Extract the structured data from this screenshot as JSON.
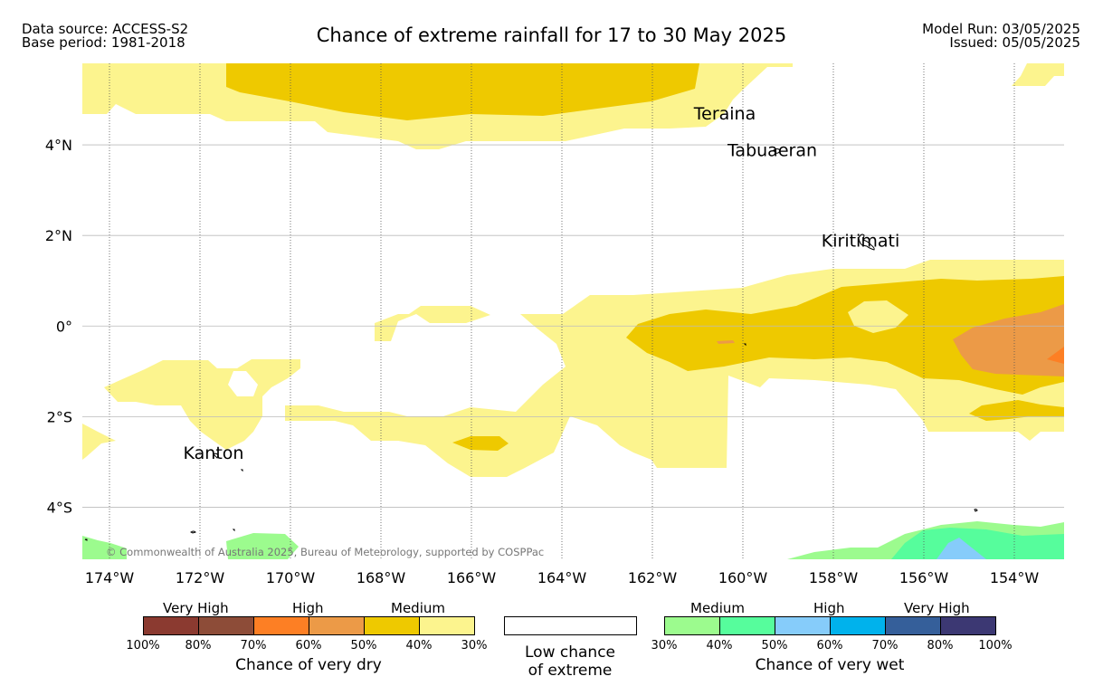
{
  "header": {
    "data_source": "Data source: ACCESS-S2",
    "base_period": "Base period: 1981-2018",
    "title": "Chance of extreme rainfall for 17 to 30 May 2025",
    "model_run": "Model Run: 03/05/2025",
    "issued": "Issued: 05/05/2025"
  },
  "map": {
    "lon_range": [
      -174.6,
      -152.9
    ],
    "lat_range": [
      -5.15,
      5.8
    ],
    "lon_ticks": [
      {
        "value": -174,
        "label": "174°W"
      },
      {
        "value": -172,
        "label": "172°W"
      },
      {
        "value": -170,
        "label": "170°W"
      },
      {
        "value": -168,
        "label": "168°W"
      },
      {
        "value": -166,
        "label": "166°W"
      },
      {
        "value": -164,
        "label": "164°W"
      },
      {
        "value": -162,
        "label": "162°W"
      },
      {
        "value": -160,
        "label": "160°W"
      },
      {
        "value": -158,
        "label": "158°W"
      },
      {
        "value": -156,
        "label": "156°W"
      },
      {
        "value": -154,
        "label": "154°W"
      }
    ],
    "lat_ticks": [
      {
        "value": 4,
        "label": "4°N"
      },
      {
        "value": 2,
        "label": "2°N"
      },
      {
        "value": 0,
        "label": "0°"
      },
      {
        "value": -2,
        "label": "2°S"
      },
      {
        "value": -4,
        "label": "4°S"
      }
    ],
    "places": [
      {
        "name": "Teraina",
        "lon": -160.4,
        "lat": 4.68
      },
      {
        "name": "Tabuaeran",
        "lon": -159.35,
        "lat": 3.87
      },
      {
        "name": "Kiritimati",
        "lon": -157.4,
        "lat": 1.87
      },
      {
        "name": "Kanton",
        "lon": -171.7,
        "lat": -2.81
      }
    ],
    "copyright": "© Commonwealth of Australia 2025, Bureau of Meteorology, supported by COSPPac",
    "colors": {
      "dry_medium_40_50": "#eec900",
      "dry_light_30_40": "#fcf48e",
      "dry_high_50_60": "#ec9a47",
      "dry_high_60_70": "#fd7f24",
      "wet_medium_30_40": "#9cfb8e",
      "wet_medium_40_50": "#56fd9c",
      "wet_high_50_60": "#86ccfa"
    }
  },
  "legend": {
    "dry": {
      "categories": [
        "Very High",
        "High",
        "Medium"
      ],
      "colors": [
        "#8b3a30",
        "#8d4c38",
        "#fd7f24",
        "#ec9a47",
        "#eec900",
        "#fcf48e"
      ],
      "ticks": [
        "100%",
        "80%",
        "70%",
        "60%",
        "50%",
        "40%",
        "30%"
      ],
      "title": "Chance of very dry"
    },
    "low": {
      "title_line1": "Low chance",
      "title_line2": "of extreme"
    },
    "wet": {
      "categories": [
        "Medium",
        "High",
        "Very High"
      ],
      "colors": [
        "#9cfb8e",
        "#56fd9c",
        "#86ccfa",
        "#00b2ec",
        "#355f9a",
        "#3c3873"
      ],
      "ticks": [
        "30%",
        "40%",
        "50%",
        "60%",
        "70%",
        "80%",
        "100%"
      ],
      "title": "Chance of very wet"
    }
  }
}
